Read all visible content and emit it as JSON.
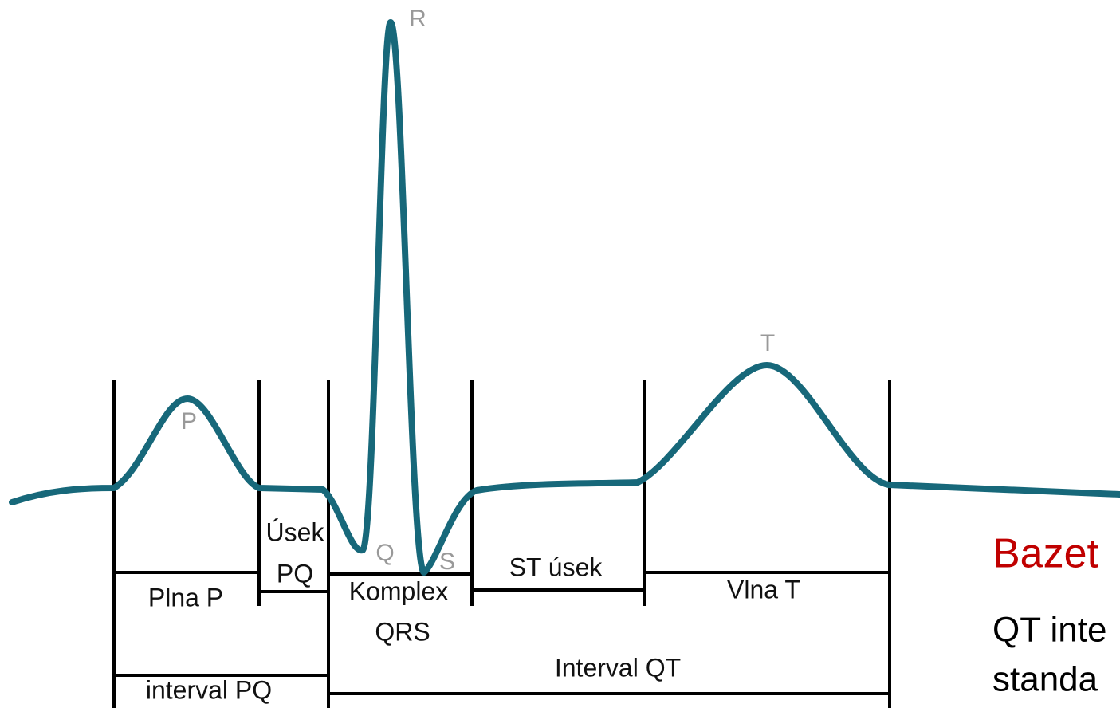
{
  "waves": {
    "p": "P",
    "q": "Q",
    "r": "R",
    "s": "S",
    "t": "T"
  },
  "segments": {
    "p_wave": "Plna P",
    "pq_segment": [
      "Úsek",
      "PQ"
    ],
    "qrs_complex": [
      "Komplex",
      "QRS"
    ],
    "st_segment": "ST úsek",
    "t_wave": "Vlna T",
    "qt_interval": "Interval QT",
    "pq_interval": "interval PQ"
  },
  "side_text": {
    "heading": "Bazet",
    "lines": [
      "QT inte",
      "standa"
    ]
  }
}
